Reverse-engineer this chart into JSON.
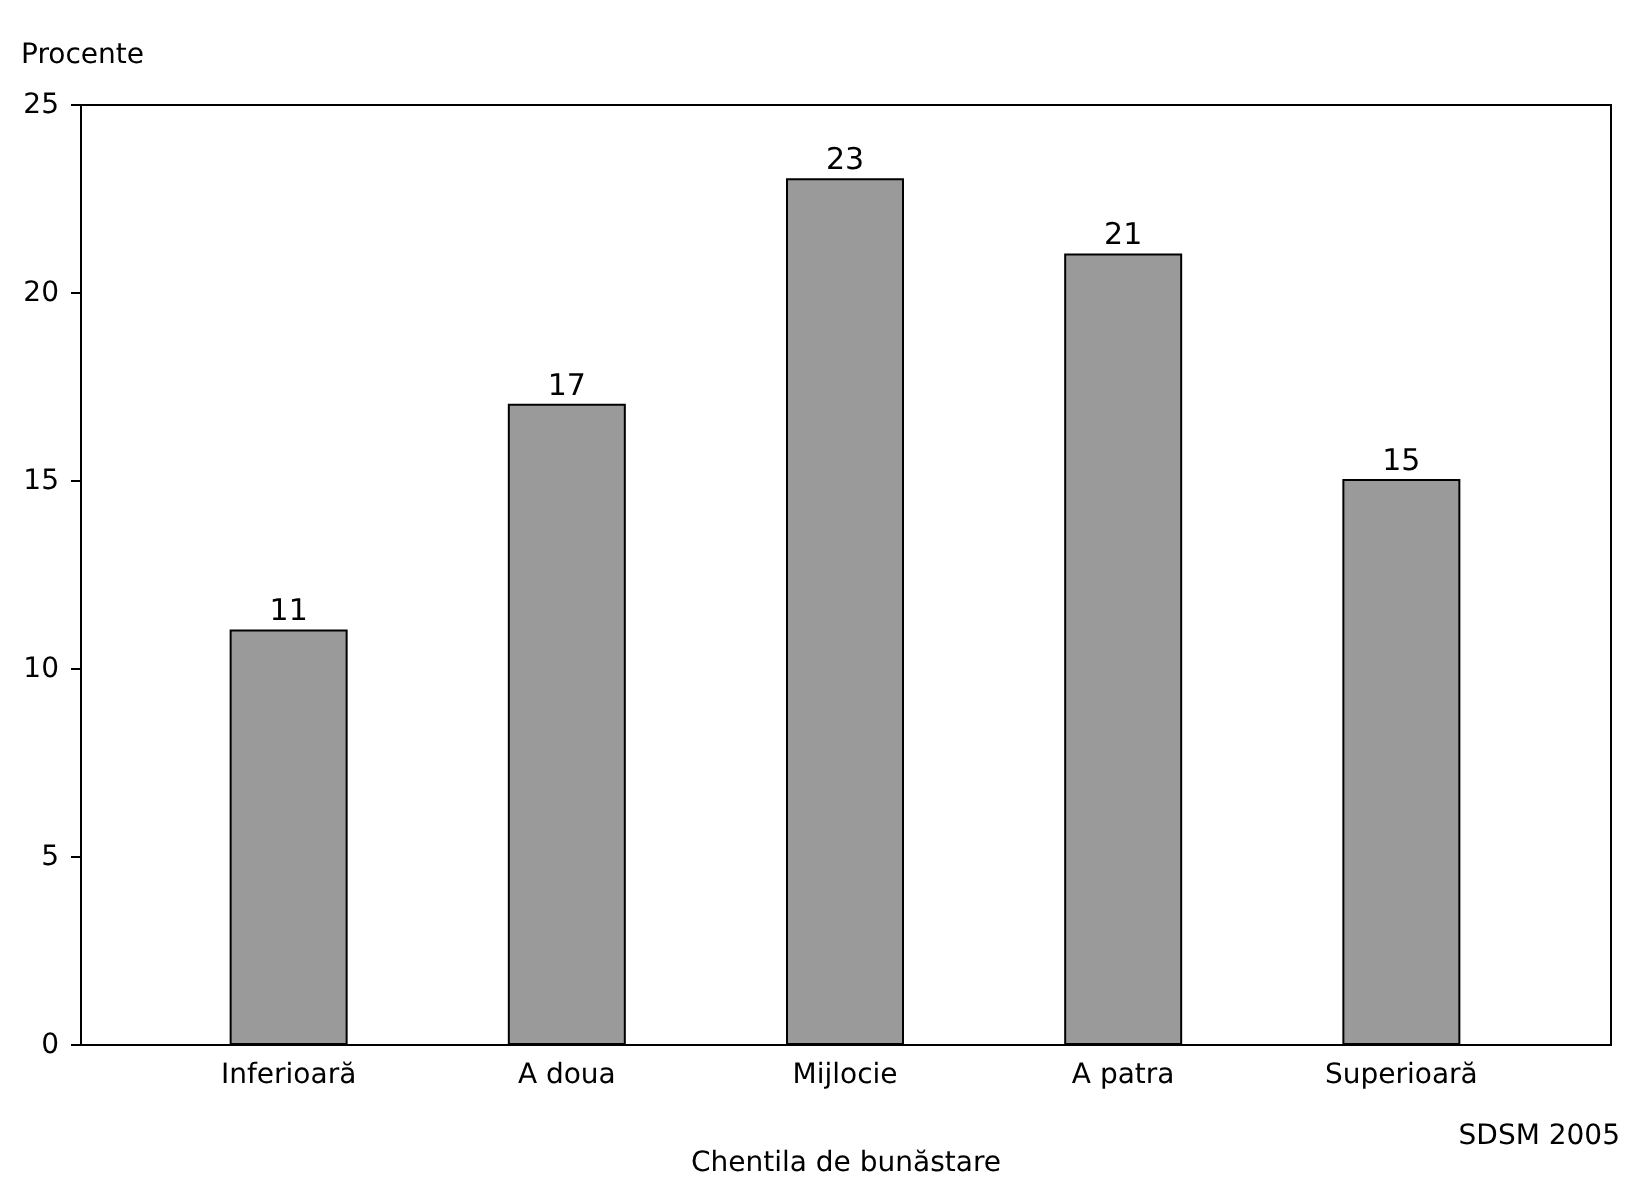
{
  "chart_data": {
    "type": "bar",
    "xlabel": "Chentila de bunăstare",
    "ylabel": "Procente",
    "categories": [
      "Inferioară",
      "A doua",
      "Mijlocie",
      "A patra",
      "Superioară"
    ],
    "values": [
      11,
      17,
      23,
      21,
      15
    ],
    "color": "#9a9a9a",
    "ylim": [
      0,
      25
    ],
    "yticks": [
      0,
      5,
      10,
      15,
      20,
      25
    ],
    "grid": false,
    "data_labels": true,
    "annotations": [
      "SDSM 2005"
    ]
  }
}
